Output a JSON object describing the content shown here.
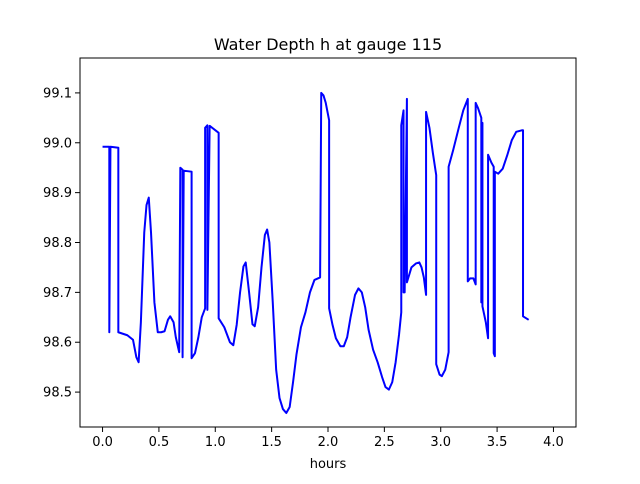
{
  "chart_data": {
    "type": "line",
    "title": "Water Depth h at gauge 115",
    "xlabel": "hours",
    "ylabel": "",
    "xlim": [
      -0.2,
      4.2
    ],
    "ylim": [
      98.43,
      99.17
    ],
    "x_ticks": [
      0.0,
      0.5,
      1.0,
      1.5,
      2.0,
      2.5,
      3.0,
      3.5,
      4.0
    ],
    "x_tick_labels": [
      "0.0",
      "0.5",
      "1.0",
      "1.5",
      "2.0",
      "2.5",
      "3.0",
      "3.5",
      "4.0"
    ],
    "y_ticks": [
      98.5,
      98.6,
      98.7,
      98.8,
      98.9,
      99.0,
      99.1
    ],
    "y_tick_labels": [
      "98.5",
      "98.6",
      "98.7",
      "98.8",
      "98.9",
      "99.0",
      "99.1"
    ],
    "grid": false,
    "series": [
      {
        "color": "#0000ff",
        "points": [
          [
            0.0,
            98.992
          ],
          [
            0.06,
            98.992
          ],
          [
            0.06,
            98.62
          ],
          [
            0.07,
            98.992
          ],
          [
            0.14,
            98.99
          ],
          [
            0.14,
            98.62
          ],
          [
            0.22,
            98.614
          ],
          [
            0.27,
            98.605
          ],
          [
            0.3,
            98.57
          ],
          [
            0.32,
            98.56
          ],
          [
            0.34,
            98.64
          ],
          [
            0.37,
            98.82
          ],
          [
            0.39,
            98.875
          ],
          [
            0.41,
            98.89
          ],
          [
            0.43,
            98.82
          ],
          [
            0.46,
            98.68
          ],
          [
            0.49,
            98.62
          ],
          [
            0.52,
            98.62
          ],
          [
            0.55,
            98.622
          ],
          [
            0.58,
            98.645
          ],
          [
            0.6,
            98.652
          ],
          [
            0.63,
            98.64
          ],
          [
            0.65,
            98.61
          ],
          [
            0.67,
            98.59
          ],
          [
            0.68,
            98.58
          ],
          [
            0.69,
            98.95
          ],
          [
            0.71,
            98.946
          ],
          [
            0.71,
            98.57
          ],
          [
            0.72,
            98.944
          ],
          [
            0.79,
            98.942
          ],
          [
            0.79,
            98.568
          ],
          [
            0.82,
            98.578
          ],
          [
            0.85,
            98.61
          ],
          [
            0.88,
            98.65
          ],
          [
            0.91,
            98.668
          ],
          [
            0.91,
            99.03
          ],
          [
            0.93,
            99.035
          ],
          [
            0.93,
            98.665
          ],
          [
            0.95,
            99.034
          ],
          [
            1.03,
            99.02
          ],
          [
            1.03,
            98.648
          ],
          [
            1.08,
            98.63
          ],
          [
            1.13,
            98.6
          ],
          [
            1.16,
            98.594
          ],
          [
            1.19,
            98.635
          ],
          [
            1.22,
            98.7
          ],
          [
            1.25,
            98.752
          ],
          [
            1.27,
            98.76
          ],
          [
            1.3,
            98.7
          ],
          [
            1.33,
            98.636
          ],
          [
            1.35,
            98.632
          ],
          [
            1.38,
            98.67
          ],
          [
            1.41,
            98.75
          ],
          [
            1.44,
            98.815
          ],
          [
            1.46,
            98.826
          ],
          [
            1.48,
            98.8
          ],
          [
            1.51,
            98.68
          ],
          [
            1.54,
            98.545
          ],
          [
            1.57,
            98.488
          ],
          [
            1.6,
            98.466
          ],
          [
            1.63,
            98.458
          ],
          [
            1.66,
            98.47
          ],
          [
            1.69,
            98.52
          ],
          [
            1.72,
            98.575
          ],
          [
            1.76,
            98.63
          ],
          [
            1.8,
            98.66
          ],
          [
            1.84,
            98.7
          ],
          [
            1.88,
            98.725
          ],
          [
            1.93,
            98.73
          ],
          [
            1.94,
            99.1
          ],
          [
            1.96,
            99.095
          ],
          [
            1.98,
            99.08
          ],
          [
            2.01,
            99.045
          ],
          [
            2.01,
            98.668
          ],
          [
            2.04,
            98.635
          ],
          [
            2.07,
            98.608
          ],
          [
            2.11,
            98.592
          ],
          [
            2.14,
            98.592
          ],
          [
            2.17,
            98.61
          ],
          [
            2.2,
            98.65
          ],
          [
            2.24,
            98.695
          ],
          [
            2.27,
            98.708
          ],
          [
            2.3,
            98.7
          ],
          [
            2.33,
            98.67
          ],
          [
            2.36,
            98.625
          ],
          [
            2.4,
            98.585
          ],
          [
            2.44,
            98.56
          ],
          [
            2.48,
            98.53
          ],
          [
            2.51,
            98.51
          ],
          [
            2.54,
            98.505
          ],
          [
            2.57,
            98.52
          ],
          [
            2.6,
            98.56
          ],
          [
            2.63,
            98.615
          ],
          [
            2.65,
            98.66
          ],
          [
            2.65,
            99.035
          ],
          [
            2.67,
            99.065
          ],
          [
            2.67,
            98.7
          ],
          [
            2.68,
            98.7
          ],
          [
            2.7,
            99.088
          ],
          [
            2.7,
            98.72
          ],
          [
            2.74,
            98.75
          ],
          [
            2.78,
            98.758
          ],
          [
            2.81,
            98.76
          ],
          [
            2.83,
            98.75
          ],
          [
            2.85,
            98.73
          ],
          [
            2.87,
            98.695
          ],
          [
            2.87,
            99.062
          ],
          [
            2.9,
            99.03
          ],
          [
            2.93,
            98.98
          ],
          [
            2.96,
            98.935
          ],
          [
            2.96,
            98.556
          ],
          [
            2.99,
            98.535
          ],
          [
            3.01,
            98.532
          ],
          [
            3.04,
            98.545
          ],
          [
            3.07,
            98.58
          ],
          [
            3.07,
            98.952
          ],
          [
            3.11,
            98.985
          ],
          [
            3.16,
            99.03
          ],
          [
            3.2,
            99.065
          ],
          [
            3.24,
            99.088
          ],
          [
            3.24,
            98.722
          ],
          [
            3.26,
            98.728
          ],
          [
            3.29,
            98.728
          ],
          [
            3.31,
            98.716
          ],
          [
            3.31,
            99.08
          ],
          [
            3.33,
            99.07
          ],
          [
            3.36,
            99.05
          ],
          [
            3.36,
            98.68
          ],
          [
            3.37,
            99.04
          ],
          [
            3.37,
            98.672
          ],
          [
            3.4,
            98.64
          ],
          [
            3.42,
            98.608
          ],
          [
            3.42,
            98.976
          ],
          [
            3.45,
            98.96
          ],
          [
            3.47,
            98.952
          ],
          [
            3.47,
            98.578
          ],
          [
            3.48,
            98.572
          ],
          [
            3.48,
            98.942
          ],
          [
            3.51,
            98.938
          ],
          [
            3.55,
            98.948
          ],
          [
            3.59,
            98.975
          ],
          [
            3.63,
            99.005
          ],
          [
            3.67,
            99.022
          ],
          [
            3.72,
            99.025
          ],
          [
            3.73,
            99.025
          ],
          [
            3.73,
            98.652
          ],
          [
            3.78,
            98.645
          ]
        ]
      }
    ]
  }
}
